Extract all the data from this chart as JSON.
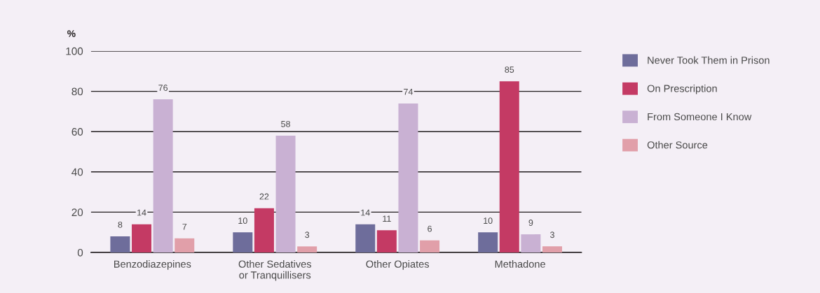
{
  "chart_data": {
    "type": "bar",
    "ylabel": "%",
    "categories": [
      "Benzodiazepines",
      "Other Sedatives\nor Tranquillisers",
      "Other Opiates",
      "Methadone"
    ],
    "series": [
      {
        "name": "Never Took Them in Prison",
        "color": "#6e6d9b",
        "values": [
          8,
          10,
          14,
          10
        ]
      },
      {
        "name": "On Prescription",
        "color": "#c43a64",
        "values": [
          14,
          22,
          11,
          85
        ]
      },
      {
        "name": "From Someone I Know",
        "color": "#c9b1d3",
        "values": [
          76,
          58,
          74,
          9
        ]
      },
      {
        "name": "Other Source",
        "color": "#e19fa9",
        "values": [
          7,
          3,
          6,
          3
        ]
      }
    ],
    "ylim": [
      0,
      100
    ],
    "yticks": [
      0,
      20,
      40,
      60,
      80,
      100
    ],
    "grid": "y",
    "legend": "top right",
    "data_labels": true
  }
}
